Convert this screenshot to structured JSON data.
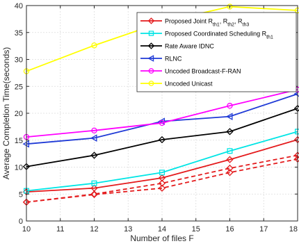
{
  "chart_data": {
    "type": "line",
    "xlabel": "Number of files F",
    "ylabel": "Average Completion Time(seconds)",
    "xlim": [
      10,
      18
    ],
    "ylim": [
      0,
      40
    ],
    "x_ticks": [
      10,
      11,
      12,
      13,
      14,
      15,
      16,
      17,
      18
    ],
    "y_ticks": [
      0,
      5,
      10,
      15,
      20,
      25,
      30,
      35,
      40
    ],
    "grid": true,
    "legend_position": "top-right",
    "x": [
      10,
      12,
      14,
      16,
      18
    ],
    "series": [
      {
        "name": "Proposed Joint",
        "color": "#e41a1c",
        "marker": "diamond",
        "dash": "solid",
        "values": [
          5.4,
          6.1,
          8.0,
          11.4,
          15.1
        ]
      },
      {
        "name": "Proposed Coordinated Scheduling",
        "color": "#00e5e5",
        "marker": "square",
        "dash": "solid",
        "values": [
          5.6,
          7.0,
          9.0,
          13.0,
          16.6
        ]
      },
      {
        "name": "Rate Aware IDNC",
        "color": "#000000",
        "marker": "diamond",
        "dash": "solid",
        "values": [
          10.1,
          12.2,
          15.1,
          16.6,
          20.9
        ]
      },
      {
        "name": "RLNC",
        "color": "#1f3ad6",
        "marker": "triangle-left",
        "dash": "solid",
        "values": [
          14.3,
          15.4,
          18.5,
          19.4,
          23.6
        ]
      },
      {
        "name": "Uncoded Broadcast-F-RAN",
        "color": "#ff00ff",
        "marker": "circle",
        "dash": "solid",
        "values": [
          15.6,
          16.8,
          18.2,
          21.4,
          24.4
        ]
      },
      {
        "name": "Uncoded Unicast",
        "color": "#ffff00",
        "marker": "circle",
        "dash": "solid",
        "values": [
          27.8,
          32.6,
          36.9,
          39.8,
          39.1
        ]
      },
      {
        "name": "",
        "color": "#e41a1c",
        "marker": "diamond",
        "dash": "dashed",
        "values": [
          3.5,
          5.0,
          7.0,
          9.8,
          12.2
        ]
      },
      {
        "name": "",
        "color": "#e41a1c",
        "marker": "diamond",
        "dash": "dashed",
        "values": [
          3.5,
          4.9,
          6.1,
          9.0,
          11.5
        ]
      }
    ],
    "legend": [
      {
        "label": "Proposed Joint R",
        "subs": [
          [
            "th1",
            ", R"
          ],
          [
            "th2",
            ", R"
          ],
          [
            "th3",
            ""
          ]
        ],
        "series": 0
      },
      {
        "label": "Proposed Coordinated Scheduling R",
        "subs": [
          [
            "th1",
            ""
          ]
        ],
        "series": 1
      },
      {
        "label": "Rate Aware IDNC",
        "subs": [],
        "series": 2
      },
      {
        "label": "RLNC",
        "subs": [],
        "series": 3
      },
      {
        "label": "Uncoded Broadcast-F-RAN",
        "subs": [],
        "series": 4
      },
      {
        "label": "Uncoded Unicast",
        "subs": [],
        "series": 5
      }
    ]
  }
}
